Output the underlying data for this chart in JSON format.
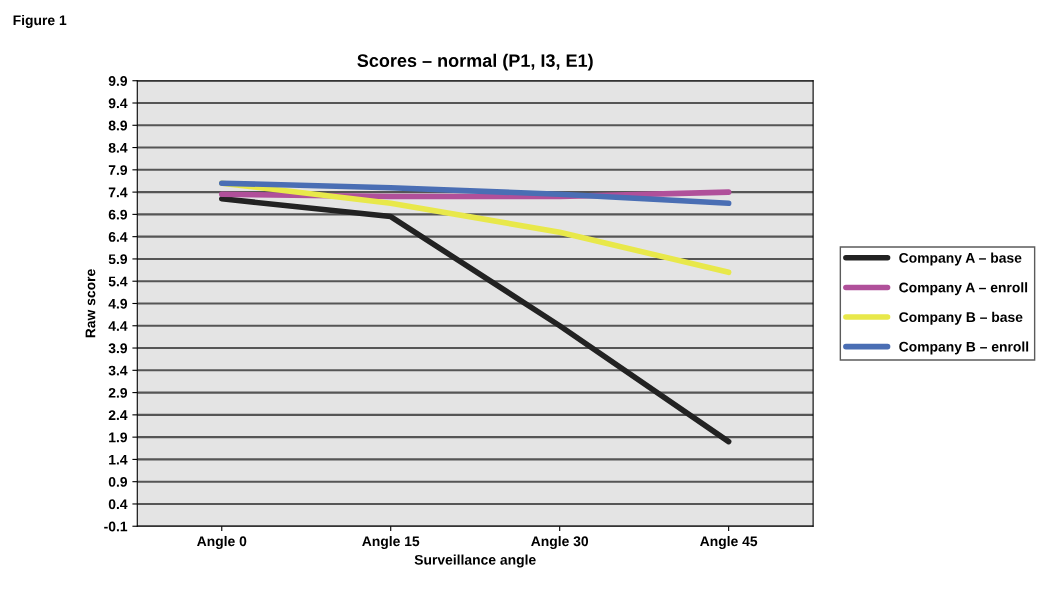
{
  "chart_data": {
    "type": "line",
    "title": "Scores – normal (P1, I3, E1)",
    "xlabel": "Surveillance angle",
    "ylabel": "Raw score",
    "annotations": [
      "Figure 1"
    ],
    "categories": [
      "Angle 0",
      "Angle 15",
      "Angle 30",
      "Angle 45"
    ],
    "series": [
      {
        "name": "Company A – base",
        "color": "#222222",
        "values": [
          7.25,
          6.85,
          4.4,
          1.8
        ]
      },
      {
        "name": "Company A – enroll",
        "color": "#b0509a",
        "values": [
          7.35,
          7.3,
          7.3,
          7.4
        ]
      },
      {
        "name": "Company B – base",
        "color": "#e8e84a",
        "values": [
          7.6,
          7.15,
          6.5,
          5.6
        ]
      },
      {
        "name": "Company B – enroll",
        "color": "#4a6eb4",
        "values": [
          7.6,
          7.5,
          7.35,
          7.15
        ]
      }
    ],
    "ylim": [
      -0.1,
      9.9
    ],
    "yticks": [
      -0.1,
      0.4,
      0.9,
      1.4,
      1.9,
      2.4,
      2.9,
      3.4,
      3.9,
      4.4,
      4.9,
      5.4,
      5.9,
      6.4,
      6.9,
      7.4,
      7.9,
      8.4,
      8.9,
      9.4,
      9.9
    ],
    "grid": "y",
    "legend": "right",
    "marker": "none",
    "line_style": "solid"
  }
}
